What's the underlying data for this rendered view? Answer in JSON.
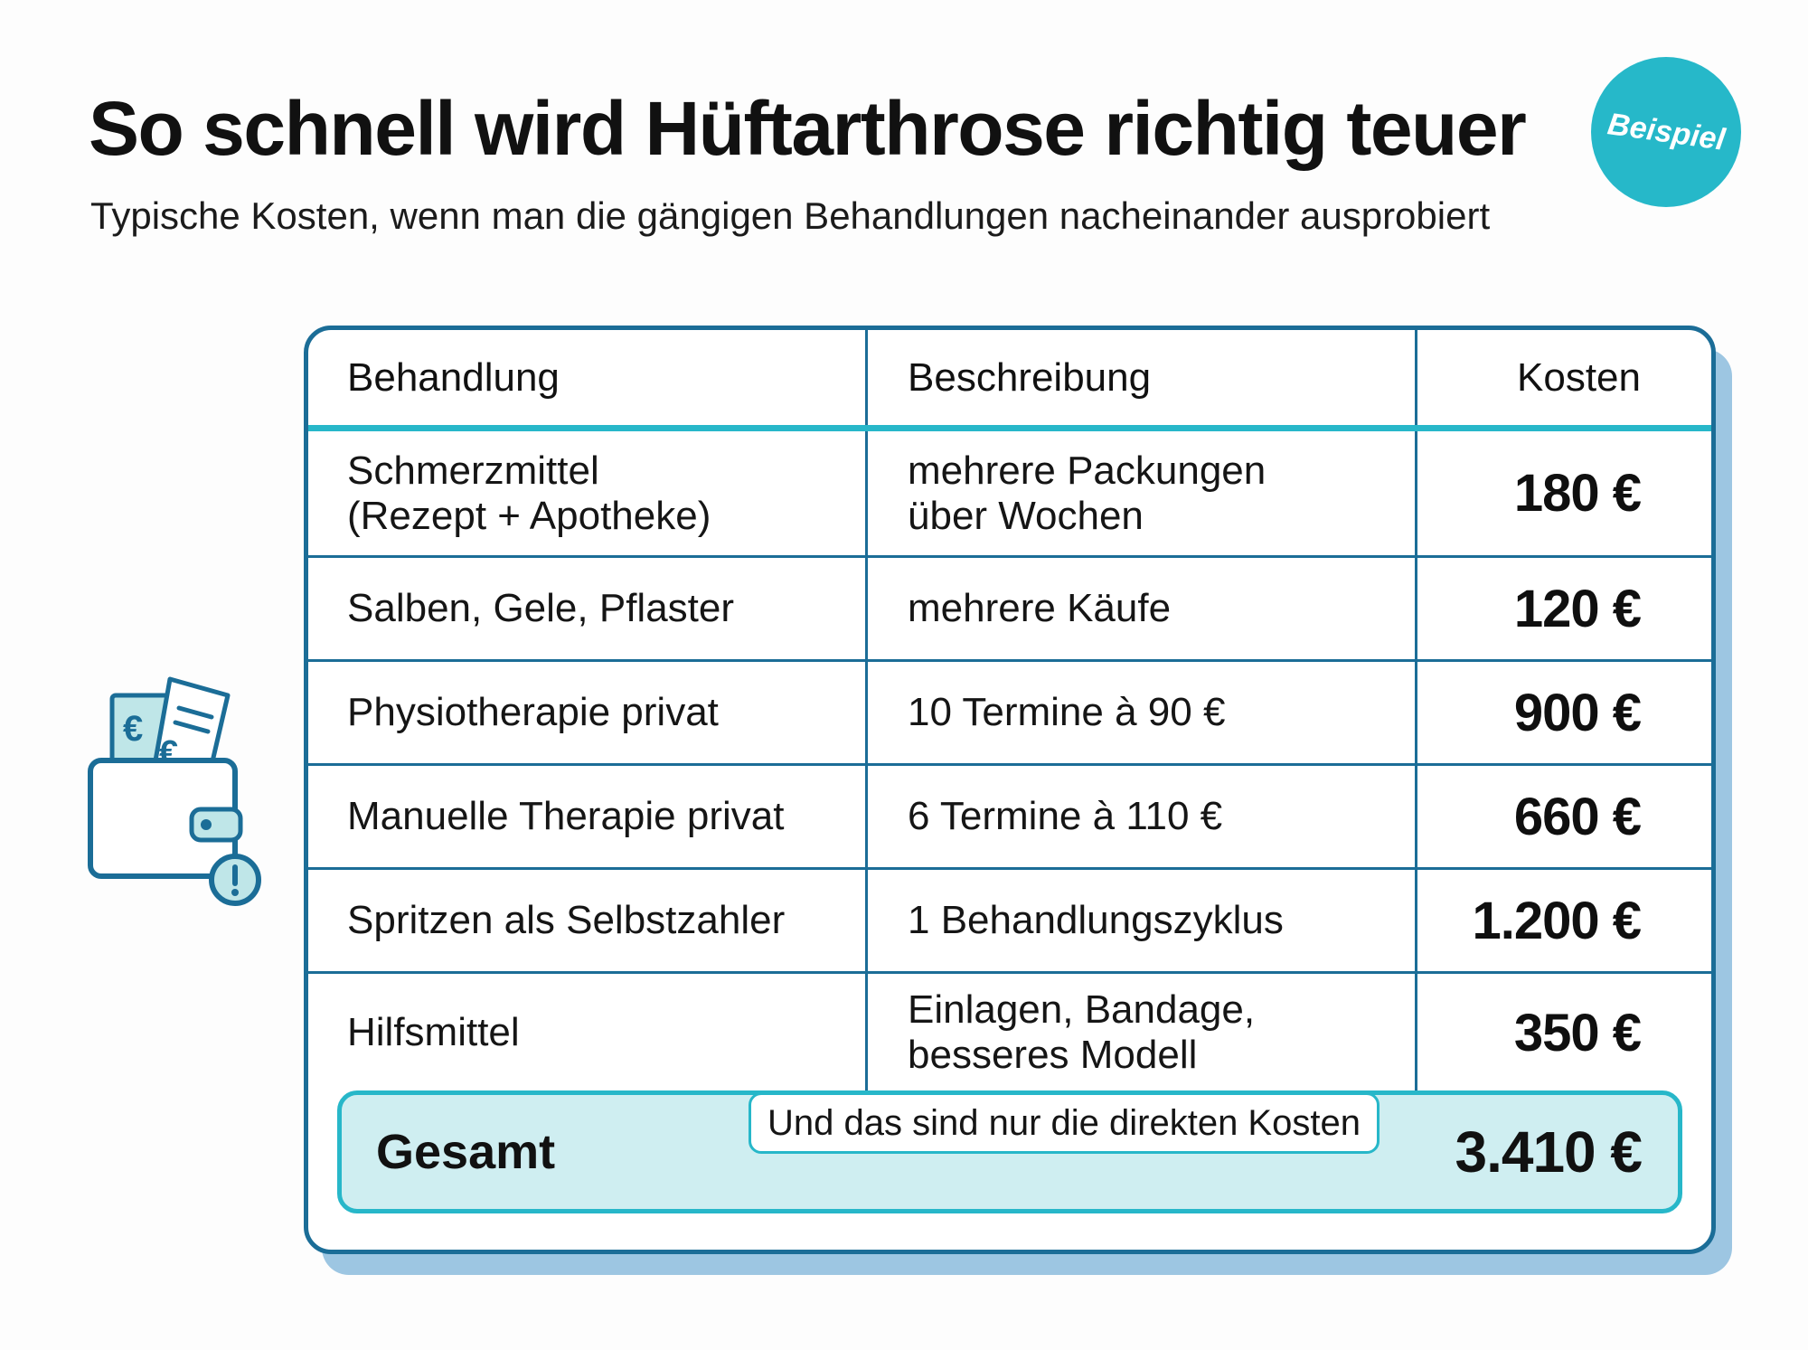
{
  "header": {
    "title": "So schnell wird Hüftarthrose richtig teuer",
    "subtitle": "Typische Kosten, wenn man die gängigen Behandlungen nacheinander ausprobiert",
    "badge": "Beispiel"
  },
  "table": {
    "columns": [
      "Behandlung",
      "Beschreibung",
      "Kosten"
    ],
    "rows": [
      {
        "treatment": "Schmerzmittel\n(Rezept + Apotheke)",
        "description": "mehrere Packungen\nüber Wochen",
        "cost": "180 €"
      },
      {
        "treatment": "Salben, Gele, Pflaster",
        "description": "mehrere Käufe",
        "cost": "120 €"
      },
      {
        "treatment": "Physiotherapie privat",
        "description": "10 Termine à 90 €",
        "cost": "900 €"
      },
      {
        "treatment": "Manuelle Therapie privat",
        "description": "6 Termine à 110 €",
        "cost": "660 €"
      },
      {
        "treatment": "Spritzen als Selbstzahler",
        "description": "1 Behandlungszyklus",
        "cost": "1.200 €"
      },
      {
        "treatment": "Hilfsmittel",
        "description": "Einlagen, Bandage,\nbesseres Modell",
        "cost": "350 €"
      }
    ],
    "total_label": "Gesamt",
    "total_note": "Und das sind nur die direkten Kosten",
    "total_value": "3.410 €"
  },
  "icons": {
    "wallet": "wallet-with-euro-receipt-warning-icon"
  },
  "colors": {
    "accent": "#27b7c9",
    "border": "#1b6d97",
    "total_bg": "#cfeef1",
    "shadow": "#9dc6e2"
  }
}
